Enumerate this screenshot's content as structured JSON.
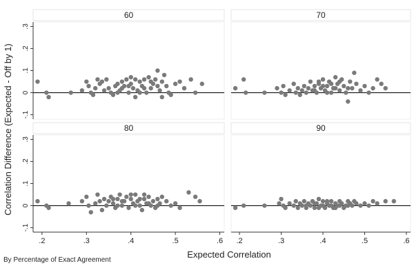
{
  "chart_data": {
    "type": "scatter",
    "xlabel": "Expected Correlation",
    "ylabel": "Correlation Difference (Expected - Off by 1)",
    "caption": "By Percentage of Exact Agreement",
    "xlim": [
      0.18,
      0.61
    ],
    "ylim": [
      -0.12,
      0.32
    ],
    "x_ticks": [
      0.2,
      0.3,
      0.4,
      0.5,
      0.6
    ],
    "x_tick_labels": [
      ".2",
      ".3",
      ".4",
      ".5",
      ".6"
    ],
    "y_ticks": [
      -0.1,
      0,
      0.1,
      0.2,
      0.3
    ],
    "y_tick_labels": [
      "-.1",
      "0",
      ".1",
      ".2",
      ".3"
    ],
    "reference_line_y": 0,
    "marker_color": "#7a7a7a",
    "panels": [
      {
        "label": "60",
        "points": [
          [
            0.19,
            0.05
          ],
          [
            0.21,
            0.0
          ],
          [
            0.215,
            -0.02
          ],
          [
            0.265,
            0.0
          ],
          [
            0.29,
            0.01
          ],
          [
            0.3,
            0.05
          ],
          [
            0.305,
            0.03
          ],
          [
            0.31,
            0.0
          ],
          [
            0.315,
            -0.01
          ],
          [
            0.32,
            0.02
          ],
          [
            0.325,
            0.06
          ],
          [
            0.33,
            0.04
          ],
          [
            0.335,
            0.05
          ],
          [
            0.34,
            0.01
          ],
          [
            0.345,
            0.06
          ],
          [
            0.35,
            0.02
          ],
          [
            0.355,
            0.0
          ],
          [
            0.36,
            -0.01
          ],
          [
            0.365,
            0.03
          ],
          [
            0.37,
            0.04
          ],
          [
            0.375,
            0.01
          ],
          [
            0.38,
            0.02
          ],
          [
            0.385,
            0.03
          ],
          [
            0.39,
            0.06
          ],
          [
            0.395,
            0.0
          ],
          [
            0.4,
            0.07
          ],
          [
            0.405,
            0.02
          ],
          [
            0.41,
            -0.02
          ],
          [
            0.415,
            0.01
          ],
          [
            0.42,
            0.05
          ],
          [
            0.425,
            0.03
          ],
          [
            0.43,
            0.06
          ],
          [
            0.435,
            0.0
          ],
          [
            0.44,
            0.07
          ],
          [
            0.445,
            0.02
          ],
          [
            0.45,
            0.04
          ],
          [
            0.455,
            0.06
          ],
          [
            0.46,
            0.1
          ],
          [
            0.465,
            0.01
          ],
          [
            0.47,
            0.05
          ],
          [
            0.475,
            0.08
          ],
          [
            0.48,
            0.03
          ],
          [
            0.485,
            0.0
          ],
          [
            0.49,
            -0.01
          ],
          [
            0.5,
            0.04
          ],
          [
            0.51,
            0.05
          ],
          [
            0.52,
            0.02
          ],
          [
            0.535,
            0.06
          ],
          [
            0.545,
            0.0
          ],
          [
            0.56,
            0.04
          ],
          [
            0.4,
            0.04
          ],
          [
            0.41,
            0.06
          ],
          [
            0.42,
            0.0
          ],
          [
            0.43,
            0.02
          ],
          [
            0.445,
            0.05
          ],
          [
            0.38,
            0.05
          ],
          [
            0.37,
            0.0
          ],
          [
            0.395,
            0.03
          ],
          [
            0.46,
            0.03
          ],
          [
            0.47,
            -0.02
          ]
        ]
      },
      {
        "label": "70",
        "points": [
          [
            0.19,
            0.02
          ],
          [
            0.21,
            0.06
          ],
          [
            0.215,
            0.0
          ],
          [
            0.26,
            0.0
          ],
          [
            0.29,
            0.02
          ],
          [
            0.3,
            0.0
          ],
          [
            0.305,
            0.03
          ],
          [
            0.31,
            -0.01
          ],
          [
            0.32,
            0.01
          ],
          [
            0.33,
            0.04
          ],
          [
            0.335,
            0.0
          ],
          [
            0.34,
            0.02
          ],
          [
            0.345,
            -0.01
          ],
          [
            0.35,
            0.01
          ],
          [
            0.355,
            0.03
          ],
          [
            0.36,
            0.0
          ],
          [
            0.365,
            0.02
          ],
          [
            0.37,
            0.05
          ],
          [
            0.375,
            0.01
          ],
          [
            0.38,
            0.03
          ],
          [
            0.385,
            0.0
          ],
          [
            0.39,
            0.04
          ],
          [
            0.395,
            0.02
          ],
          [
            0.4,
            0.06
          ],
          [
            0.405,
            0.01
          ],
          [
            0.41,
            0.03
          ],
          [
            0.415,
            0.05
          ],
          [
            0.42,
            0.0
          ],
          [
            0.425,
            0.02
          ],
          [
            0.43,
            0.07
          ],
          [
            0.435,
            0.04
          ],
          [
            0.44,
            0.01
          ],
          [
            0.445,
            0.06
          ],
          [
            0.45,
            0.03
          ],
          [
            0.455,
            0.0
          ],
          [
            0.46,
            -0.04
          ],
          [
            0.465,
            0.05
          ],
          [
            0.47,
            0.02
          ],
          [
            0.475,
            0.09
          ],
          [
            0.48,
            0.04
          ],
          [
            0.49,
            0.01
          ],
          [
            0.5,
            0.03
          ],
          [
            0.51,
            0.0
          ],
          [
            0.52,
            0.02
          ],
          [
            0.53,
            0.06
          ],
          [
            0.54,
            0.04
          ],
          [
            0.55,
            0.02
          ],
          [
            0.4,
            0.03
          ],
          [
            0.41,
            0.0
          ],
          [
            0.42,
            0.04
          ],
          [
            0.43,
            0.02
          ],
          [
            0.44,
            0.05
          ],
          [
            0.38,
            0.01
          ],
          [
            0.39,
            0.05
          ],
          [
            0.46,
            0.02
          ]
        ]
      },
      {
        "label": "80",
        "points": [
          [
            0.19,
            0.02
          ],
          [
            0.21,
            0.0
          ],
          [
            0.215,
            -0.01
          ],
          [
            0.26,
            0.01
          ],
          [
            0.29,
            0.02
          ],
          [
            0.3,
            0.04
          ],
          [
            0.305,
            0.0
          ],
          [
            0.31,
            -0.03
          ],
          [
            0.32,
            0.01
          ],
          [
            0.325,
            0.05
          ],
          [
            0.33,
            0.02
          ],
          [
            0.335,
            -0.02
          ],
          [
            0.34,
            0.03
          ],
          [
            0.345,
            0.0
          ],
          [
            0.35,
            0.02
          ],
          [
            0.355,
            0.04
          ],
          [
            0.36,
            0.01
          ],
          [
            0.365,
            -0.01
          ],
          [
            0.37,
            0.03
          ],
          [
            0.375,
            0.05
          ],
          [
            0.38,
            0.0
          ],
          [
            0.385,
            0.02
          ],
          [
            0.39,
            0.04
          ],
          [
            0.395,
            -0.01
          ],
          [
            0.4,
            0.03
          ],
          [
            0.405,
            0.01
          ],
          [
            0.41,
            0.05
          ],
          [
            0.415,
            0.02
          ],
          [
            0.42,
            0.0
          ],
          [
            0.425,
            -0.02
          ],
          [
            0.43,
            0.03
          ],
          [
            0.435,
            0.01
          ],
          [
            0.44,
            0.04
          ],
          [
            0.445,
            0.0
          ],
          [
            0.45,
            0.02
          ],
          [
            0.455,
            -0.01
          ],
          [
            0.46,
            0.03
          ],
          [
            0.465,
            0.01
          ],
          [
            0.47,
            0.04
          ],
          [
            0.48,
            0.02
          ],
          [
            0.49,
            0.0
          ],
          [
            0.5,
            0.01
          ],
          [
            0.51,
            -0.01
          ],
          [
            0.53,
            0.06
          ],
          [
            0.545,
            0.04
          ],
          [
            0.555,
            0.02
          ],
          [
            0.4,
            0.05
          ],
          [
            0.41,
            0.0
          ],
          [
            0.42,
            0.03
          ],
          [
            0.43,
            0.05
          ],
          [
            0.38,
            0.02
          ],
          [
            0.37,
            0.0
          ],
          [
            0.36,
            0.03
          ],
          [
            0.44,
            0.01
          ],
          [
            0.46,
            0.0
          ]
        ]
      },
      {
        "label": "90",
        "points": [
          [
            0.19,
            -0.01
          ],
          [
            0.21,
            0.0
          ],
          [
            0.26,
            0.0
          ],
          [
            0.295,
            0.01
          ],
          [
            0.3,
            0.03
          ],
          [
            0.305,
            0.0
          ],
          [
            0.31,
            -0.01
          ],
          [
            0.32,
            0.01
          ],
          [
            0.33,
            0.0
          ],
          [
            0.335,
            0.02
          ],
          [
            0.34,
            -0.01
          ],
          [
            0.345,
            0.01
          ],
          [
            0.35,
            0.0
          ],
          [
            0.355,
            0.02
          ],
          [
            0.36,
            -0.01
          ],
          [
            0.365,
            0.01
          ],
          [
            0.37,
            0.0
          ],
          [
            0.375,
            0.02
          ],
          [
            0.38,
            -0.01
          ],
          [
            0.385,
            0.01
          ],
          [
            0.39,
            0.03
          ],
          [
            0.395,
            0.0
          ],
          [
            0.4,
            0.02
          ],
          [
            0.405,
            -0.01
          ],
          [
            0.41,
            0.01
          ],
          [
            0.415,
            0.0
          ],
          [
            0.42,
            0.02
          ],
          [
            0.425,
            -0.01
          ],
          [
            0.43,
            0.01
          ],
          [
            0.435,
            0.0
          ],
          [
            0.44,
            0.02
          ],
          [
            0.445,
            0.01
          ],
          [
            0.45,
            -0.01
          ],
          [
            0.455,
            0.0
          ],
          [
            0.46,
            0.02
          ],
          [
            0.465,
            0.01
          ],
          [
            0.47,
            0.0
          ],
          [
            0.475,
            0.02
          ],
          [
            0.48,
            0.01
          ],
          [
            0.49,
            0.0
          ],
          [
            0.5,
            0.01
          ],
          [
            0.51,
            0.0
          ],
          [
            0.52,
            0.02
          ],
          [
            0.53,
            0.01
          ],
          [
            0.55,
            0.02
          ],
          [
            0.57,
            0.02
          ],
          [
            0.4,
            0.0
          ],
          [
            0.41,
            0.02
          ],
          [
            0.42,
            0.0
          ],
          [
            0.43,
            -0.01
          ],
          [
            0.38,
            0.01
          ],
          [
            0.39,
            -0.01
          ],
          [
            0.36,
            0.0
          ],
          [
            0.44,
            0.0
          ],
          [
            0.46,
            0.0
          ]
        ]
      }
    ]
  }
}
